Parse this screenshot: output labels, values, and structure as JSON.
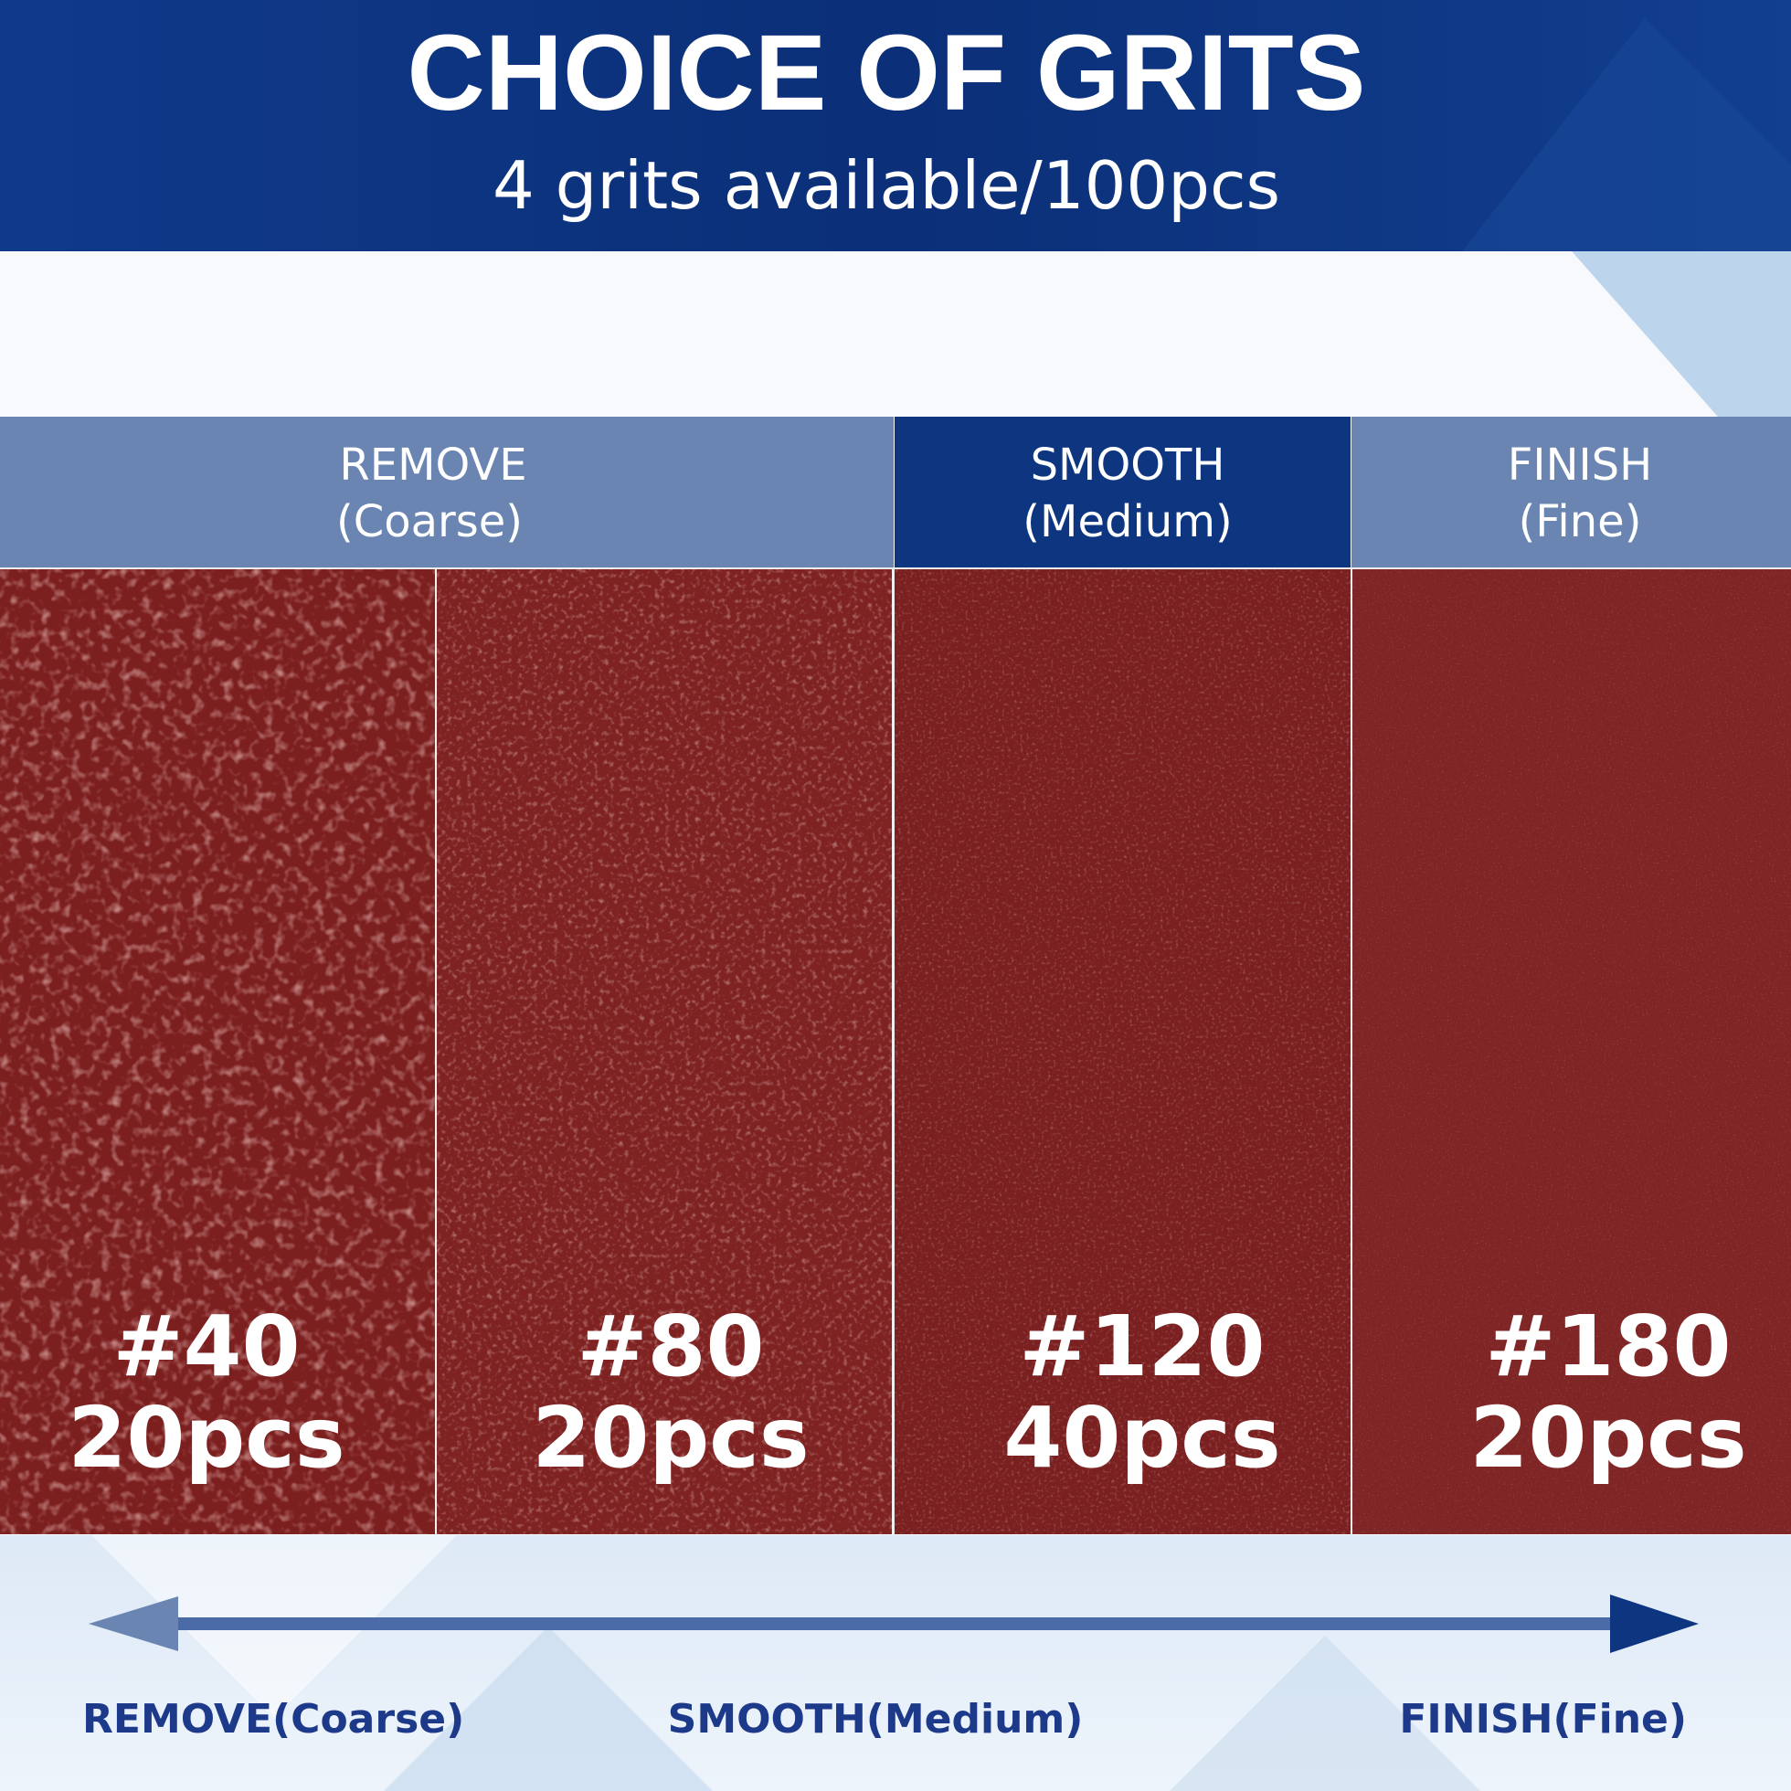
{
  "header": {
    "title": "CHOICE OF GRITS",
    "subtitle": "4 grits available/100pcs"
  },
  "categories": [
    {
      "name": "REMOVE",
      "level": "(Coarse)"
    },
    {
      "name": "SMOOTH",
      "level": "(Medium)"
    },
    {
      "name": "FINISH",
      "level": "(Fine)"
    }
  ],
  "panels": [
    {
      "grit": "#40",
      "count": "20pcs"
    },
    {
      "grit": "#80",
      "count": "20pcs"
    },
    {
      "grit": "#120",
      "count": "40pcs"
    },
    {
      "grit": "#180",
      "count": "20pcs"
    }
  ],
  "scale": {
    "labels": [
      "REMOVE(Coarse)",
      "SMOOTH(Medium)",
      "FINISH(Fine)"
    ]
  }
}
